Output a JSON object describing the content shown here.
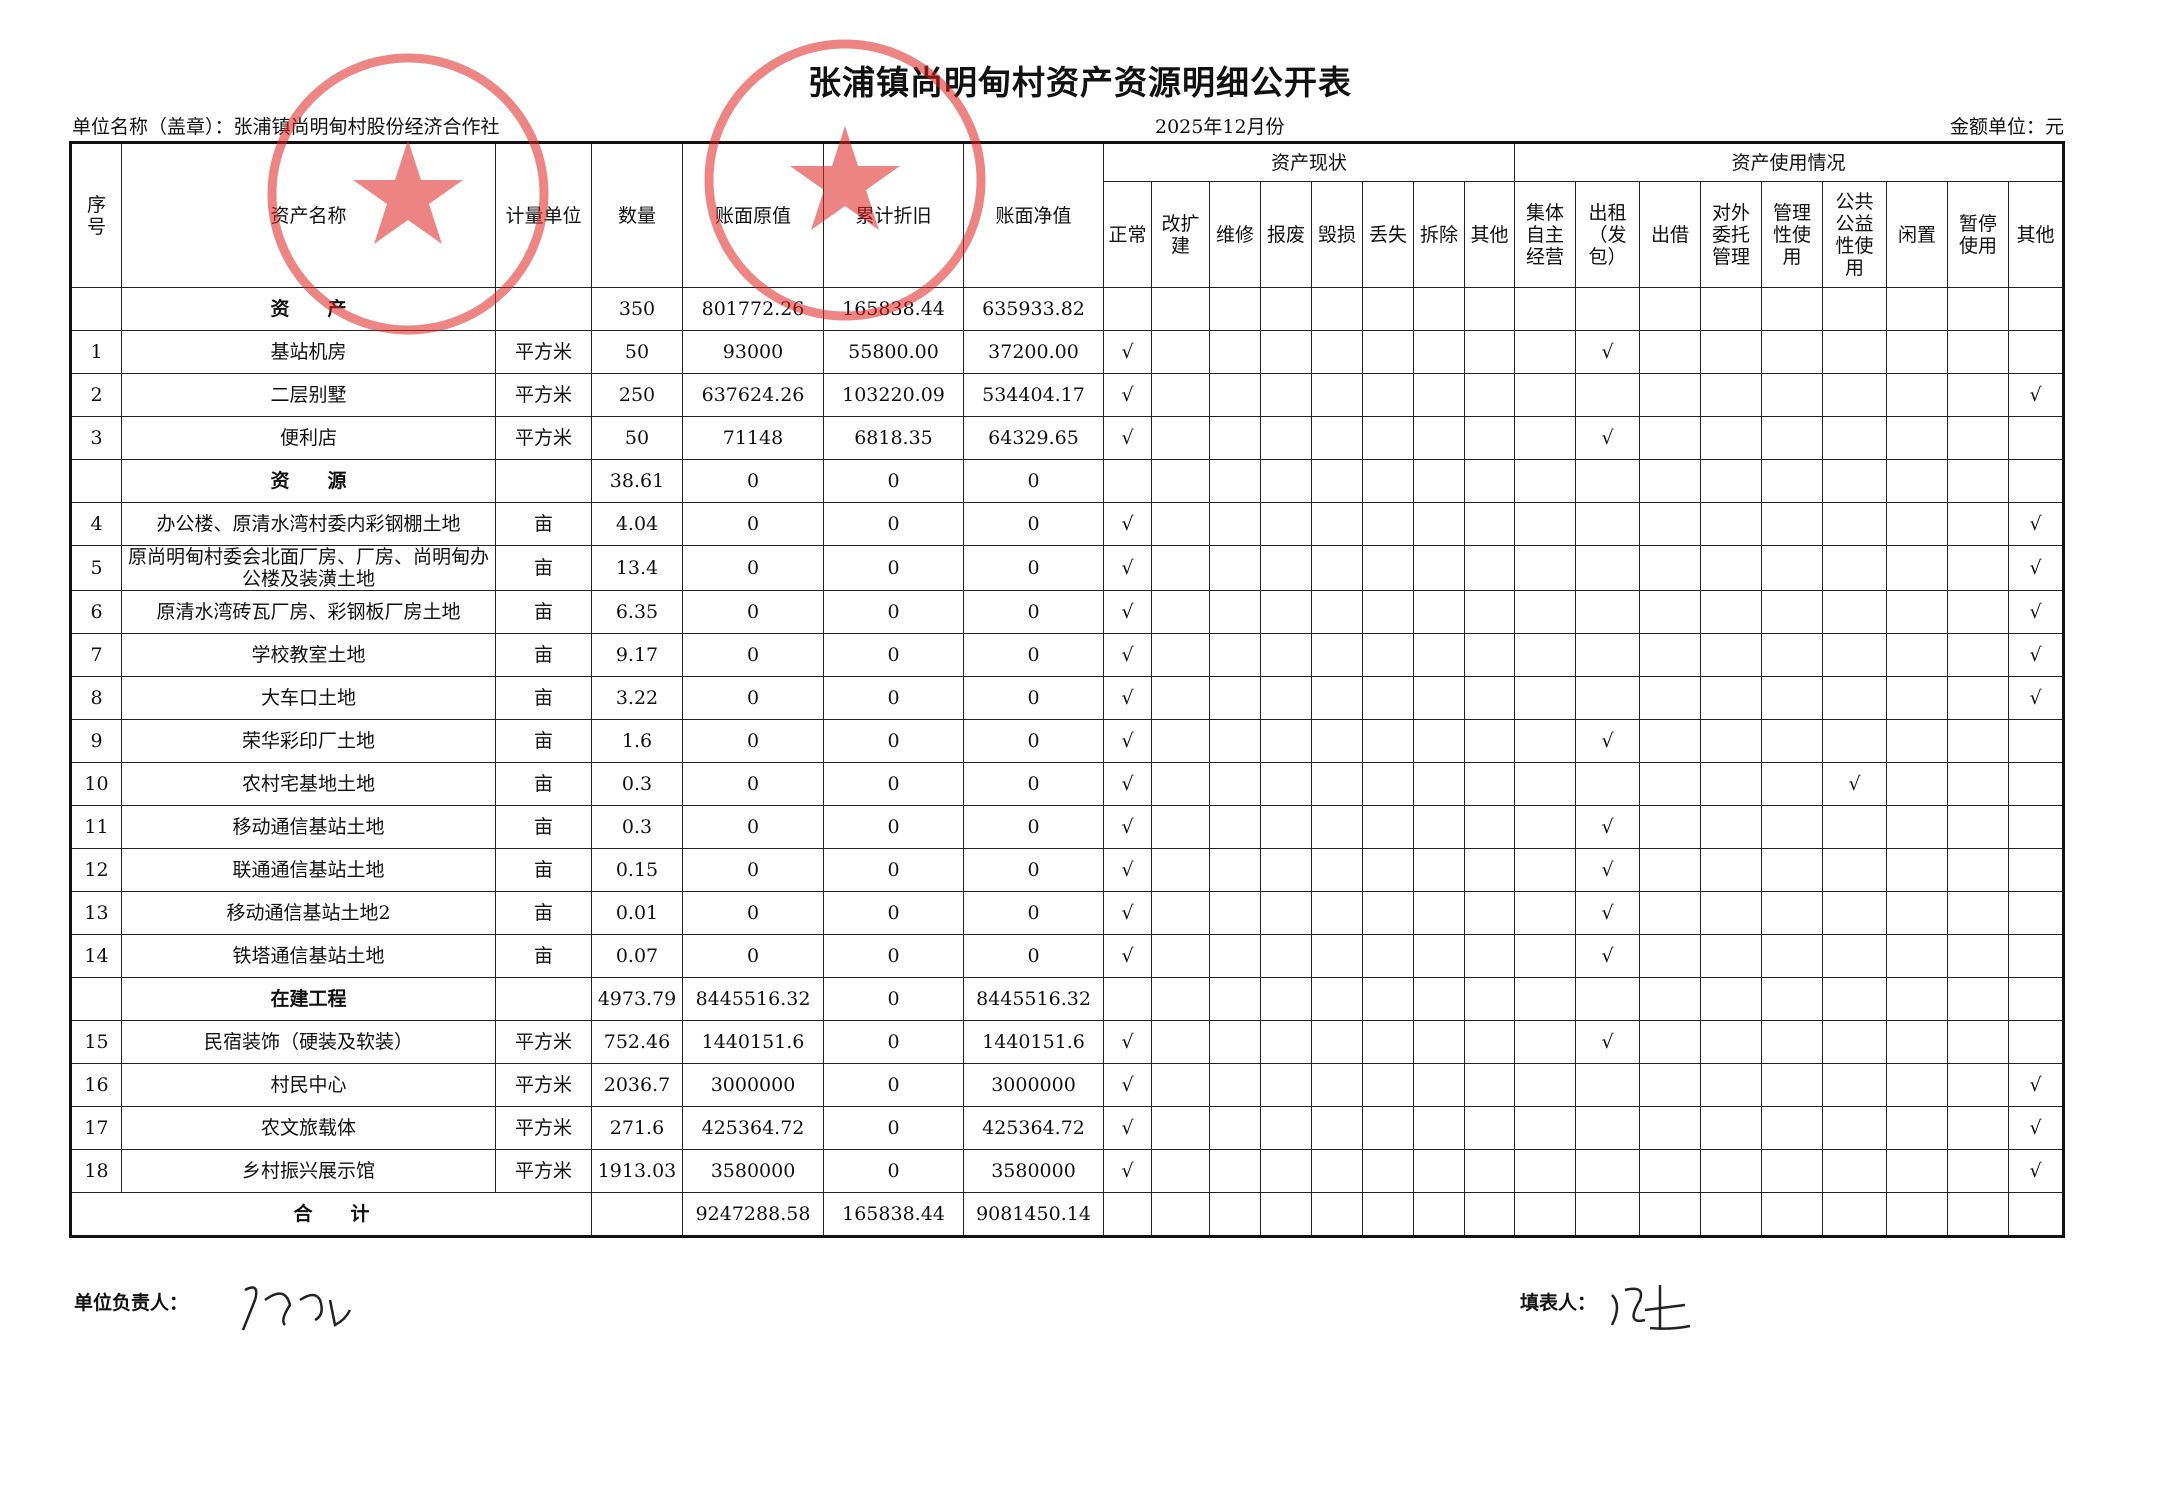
{
  "header": {
    "title": "张浦镇尚明甸村资产资源明细公开表",
    "unit_name": "单位名称（盖章）：张浦镇尚明甸村股份经济合作社",
    "period": "2025年12月份",
    "currency": "金额单位：元"
  },
  "table": {
    "group_headers": [
      "资产现状",
      "资产使用情况"
    ],
    "columns": [
      "序\n号",
      "资产名称",
      "计量单位",
      "数量",
      "账面原值",
      "累计折旧",
      "账面净值",
      "正常",
      "改扩\n建",
      "维修",
      "报废",
      "毁损",
      "丢失",
      "拆除",
      "其他",
      "集体\n自主\n经营",
      "出租\n（发\n包）",
      "出借",
      "对外\n委托\n管理",
      "管理\n性使\n用",
      "公共\n公益\n性使\n用",
      "闲置",
      "暂停\n使用",
      "其他"
    ],
    "rows": [
      [
        null,
        "资　　产",
        null,
        "350",
        "801772.26",
        "165838.44",
        "635933.82",
        null,
        null,
        null,
        null,
        null,
        null,
        null,
        null,
        null,
        null,
        null,
        null,
        null,
        null,
        null,
        null,
        null
      ],
      [
        "1",
        "基站机房",
        "平方米",
        "50",
        "93000",
        "55800.00",
        "37200.00",
        "√",
        null,
        null,
        null,
        null,
        null,
        null,
        null,
        null,
        "√",
        null,
        null,
        null,
        null,
        null,
        null,
        null
      ],
      [
        "2",
        "二层别墅",
        "平方米",
        "250",
        "637624.26",
        "103220.09",
        "534404.17",
        "√",
        null,
        null,
        null,
        null,
        null,
        null,
        null,
        null,
        null,
        null,
        null,
        null,
        null,
        null,
        null,
        "√"
      ],
      [
        "3",
        "便利店",
        "平方米",
        "50",
        "71148",
        "6818.35",
        "64329.65",
        "√",
        null,
        null,
        null,
        null,
        null,
        null,
        null,
        null,
        "√",
        null,
        null,
        null,
        null,
        null,
        null,
        null
      ],
      [
        null,
        "资　　源",
        null,
        "38.61",
        "0",
        "0",
        "0",
        null,
        null,
        null,
        null,
        null,
        null,
        null,
        null,
        null,
        null,
        null,
        null,
        null,
        null,
        null,
        null,
        null
      ],
      [
        "4",
        "办公楼、原清水湾村委内彩钢棚土地",
        "亩",
        "4.04",
        "0",
        "0",
        "0",
        "√",
        null,
        null,
        null,
        null,
        null,
        null,
        null,
        null,
        null,
        null,
        null,
        null,
        null,
        null,
        null,
        "√"
      ],
      [
        "5",
        "原尚明甸村委会北面厂房、厂房、尚明甸办公楼及装潢土地",
        "亩",
        "13.4",
        "0",
        "0",
        "0",
        "√",
        null,
        null,
        null,
        null,
        null,
        null,
        null,
        null,
        null,
        null,
        null,
        null,
        null,
        null,
        null,
        "√"
      ],
      [
        "6",
        "原清水湾砖瓦厂房、彩钢板厂房土地",
        "亩",
        "6.35",
        "0",
        "0",
        "0",
        "√",
        null,
        null,
        null,
        null,
        null,
        null,
        null,
        null,
        null,
        null,
        null,
        null,
        null,
        null,
        null,
        "√"
      ],
      [
        "7",
        "学校教室土地",
        "亩",
        "9.17",
        "0",
        "0",
        "0",
        "√",
        null,
        null,
        null,
        null,
        null,
        null,
        null,
        null,
        null,
        null,
        null,
        null,
        null,
        null,
        null,
        "√"
      ],
      [
        "8",
        "大车口土地",
        "亩",
        "3.22",
        "0",
        "0",
        "0",
        "√",
        null,
        null,
        null,
        null,
        null,
        null,
        null,
        null,
        null,
        null,
        null,
        null,
        null,
        null,
        null,
        "√"
      ],
      [
        "9",
        "荣华彩印厂土地",
        "亩",
        "1.6",
        "0",
        "0",
        "0",
        "√",
        null,
        null,
        null,
        null,
        null,
        null,
        null,
        null,
        "√",
        null,
        null,
        null,
        null,
        null,
        null,
        null
      ],
      [
        "10",
        "农村宅基地土地",
        "亩",
        "0.3",
        "0",
        "0",
        "0",
        "√",
        null,
        null,
        null,
        null,
        null,
        null,
        null,
        null,
        null,
        null,
        null,
        null,
        "√",
        null,
        null,
        null
      ],
      [
        "11",
        "移动通信基站土地",
        "亩",
        "0.3",
        "0",
        "0",
        "0",
        "√",
        null,
        null,
        null,
        null,
        null,
        null,
        null,
        null,
        "√",
        null,
        null,
        null,
        null,
        null,
        null,
        null
      ],
      [
        "12",
        "联通通信基站土地",
        "亩",
        "0.15",
        "0",
        "0",
        "0",
        "√",
        null,
        null,
        null,
        null,
        null,
        null,
        null,
        null,
        "√",
        null,
        null,
        null,
        null,
        null,
        null,
        null
      ],
      [
        "13",
        "移动通信基站土地2",
        "亩",
        "0.01",
        "0",
        "0",
        "0",
        "√",
        null,
        null,
        null,
        null,
        null,
        null,
        null,
        null,
        "√",
        null,
        null,
        null,
        null,
        null,
        null,
        null
      ],
      [
        "14",
        "铁塔通信基站土地",
        "亩",
        "0.07",
        "0",
        "0",
        "0",
        "√",
        null,
        null,
        null,
        null,
        null,
        null,
        null,
        null,
        "√",
        null,
        null,
        null,
        null,
        null,
        null,
        null
      ],
      [
        null,
        "在建工程",
        null,
        "4973.79",
        "8445516.32",
        "0",
        "8445516.32",
        null,
        null,
        null,
        null,
        null,
        null,
        null,
        null,
        null,
        null,
        null,
        null,
        null,
        null,
        null,
        null,
        null
      ],
      [
        "15",
        "民宿装饰（硬装及软装）",
        "平方米",
        "752.46",
        "1440151.6",
        "0",
        "1440151.6",
        "√",
        null,
        null,
        null,
        null,
        null,
        null,
        null,
        null,
        "√",
        null,
        null,
        null,
        null,
        null,
        null,
        null
      ],
      [
        "16",
        "村民中心",
        "平方米",
        "2036.7",
        "3000000",
        "0",
        "3000000",
        "√",
        null,
        null,
        null,
        null,
        null,
        null,
        null,
        null,
        null,
        null,
        null,
        null,
        null,
        null,
        null,
        "√"
      ],
      [
        "17",
        "农文旅载体",
        "平方米",
        "271.6",
        "425364.72",
        "0",
        "425364.72",
        "√",
        null,
        null,
        null,
        null,
        null,
        null,
        null,
        null,
        null,
        null,
        null,
        null,
        null,
        null,
        null,
        "√"
      ],
      [
        "18",
        "乡村振兴展示馆",
        "平方米",
        "1913.03",
        "3580000",
        "0",
        "3580000",
        "√",
        null,
        null,
        null,
        null,
        null,
        null,
        null,
        null,
        null,
        null,
        null,
        null,
        null,
        null,
        null,
        "√"
      ]
    ],
    "total": {
      "label": "合　　计",
      "values": [
        "9247288.58",
        "165838.44",
        "9081450.14"
      ]
    }
  },
  "footer": {
    "responsible": "单位负责人：",
    "preparer": "填表人："
  }
}
